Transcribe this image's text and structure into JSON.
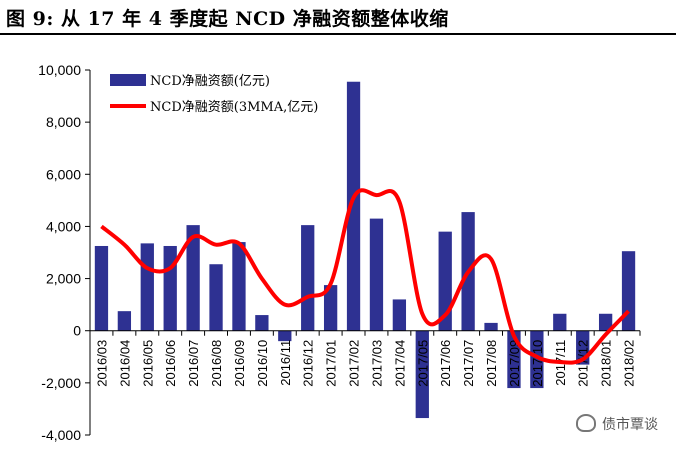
{
  "figure": {
    "title": "图 9: 从 17 年 4 季度起 NCD 净融资额整体收缩"
  },
  "watermark": {
    "text": "债市覃谈",
    "icon": "wechat-icon"
  },
  "chart_data": {
    "type": "bar",
    "categories": [
      "2016/03",
      "2016/04",
      "2016/05",
      "2016/06",
      "2016/07",
      "2016/08",
      "2016/09",
      "2016/10",
      "2016/11",
      "2016/12",
      "2017/01",
      "2017/02",
      "2017/03",
      "2017/04",
      "2017/05",
      "2017/06",
      "2017/07",
      "2017/08",
      "2017/09",
      "2017/10",
      "2017/11",
      "2017/12",
      "2018/01",
      "2018/02"
    ],
    "ylim": [
      -4000,
      10000
    ],
    "yticks": [
      -4000,
      -2000,
      0,
      2000,
      4000,
      6000,
      8000,
      10000
    ],
    "ytick_labels": [
      "-4,000",
      "-2,000",
      "0",
      "2,000",
      "4,000",
      "6,000",
      "8,000",
      "10,000"
    ],
    "grid": false,
    "legend_position": "top-left",
    "series": [
      {
        "name": "NCD净融资额(亿元)",
        "type": "bar",
        "color": "#2e3192",
        "values": [
          3250,
          750,
          3350,
          3250,
          4050,
          2550,
          3400,
          600,
          -400,
          4050,
          1750,
          9550,
          4300,
          1200,
          -3350,
          3800,
          4550,
          300,
          -2200,
          -2200,
          650,
          -1300,
          650,
          3050
        ]
      },
      {
        "name": "NCD净融资额(3MMA,亿元)",
        "type": "line",
        "color": "#ff0000",
        "values": [
          4000,
          3300,
          2400,
          2400,
          3600,
          3300,
          3350,
          2000,
          1000,
          1300,
          1800,
          5100,
          5200,
          4950,
          650,
          600,
          2250,
          2750,
          -200,
          -1000,
          -1200,
          -1100,
          -150,
          750
        ]
      }
    ]
  }
}
